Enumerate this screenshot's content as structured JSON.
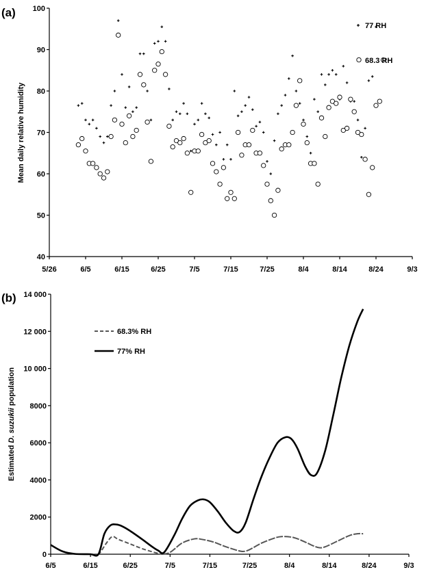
{
  "chart_data": [
    {
      "panel_label": "(a)",
      "type": "scatter",
      "ylabel": "Mean daily relative humidity",
      "xlim": [
        0,
        100
      ],
      "ylim": [
        40,
        100
      ],
      "x_ticks": [
        {
          "pos": 0,
          "label": "5/26"
        },
        {
          "pos": 10,
          "label": "6/5"
        },
        {
          "pos": 20,
          "label": "6/15"
        },
        {
          "pos": 30,
          "label": "6/25"
        },
        {
          "pos": 40,
          "label": "7/5"
        },
        {
          "pos": 50,
          "label": "7/15"
        },
        {
          "pos": 60,
          "label": "7/25"
        },
        {
          "pos": 70,
          "label": "8/4"
        },
        {
          "pos": 80,
          "label": "8/14"
        },
        {
          "pos": 90,
          "label": "8/24"
        },
        {
          "pos": 100,
          "label": "9/3"
        }
      ],
      "y_ticks": [
        40,
        50,
        60,
        70,
        80,
        90,
        100
      ],
      "series": [
        {
          "name": "77 RH",
          "marker": "plus",
          "values": [
            [
              8,
              76.5
            ],
            [
              9,
              77
            ],
            [
              10,
              73
            ],
            [
              11,
              72
            ],
            [
              12,
              73
            ],
            [
              13,
              71
            ],
            [
              14,
              69
            ],
            [
              15,
              67.5
            ],
            [
              16,
              69
            ],
            [
              17,
              76.5
            ],
            [
              18,
              80
            ],
            [
              19,
              97
            ],
            [
              20,
              84
            ],
            [
              21,
              76
            ],
            [
              22,
              81
            ],
            [
              23,
              75
            ],
            [
              24,
              76
            ],
            [
              25,
              89
            ],
            [
              26,
              89
            ],
            [
              27,
              80
            ],
            [
              28,
              73
            ],
            [
              29,
              91.5
            ],
            [
              30,
              92
            ],
            [
              31,
              95.5
            ],
            [
              32,
              92
            ],
            [
              33,
              80.5
            ],
            [
              34,
              73
            ],
            [
              35,
              75
            ],
            [
              36,
              74.5
            ],
            [
              37,
              77
            ],
            [
              38,
              74.5
            ],
            [
              39,
              65.5
            ],
            [
              40,
              72
            ],
            [
              41,
              73
            ],
            [
              42,
              77
            ],
            [
              43,
              74.5
            ],
            [
              44,
              73.5
            ],
            [
              45,
              69.5
            ],
            [
              46,
              67
            ],
            [
              47,
              70
            ],
            [
              48,
              63.5
            ],
            [
              49,
              67
            ],
            [
              50,
              63.5
            ],
            [
              51,
              80
            ],
            [
              52,
              74
            ],
            [
              53,
              75
            ],
            [
              54,
              76.5
            ],
            [
              55,
              78.5
            ],
            [
              56,
              75.5
            ],
            [
              57,
              71.5
            ],
            [
              58,
              72.5
            ],
            [
              59,
              70
            ],
            [
              60,
              63
            ],
            [
              61,
              60
            ],
            [
              62,
              68
            ],
            [
              63,
              74.5
            ],
            [
              64,
              76.5
            ],
            [
              65,
              79
            ],
            [
              66,
              83
            ],
            [
              67,
              88.5
            ],
            [
              68,
              80
            ],
            [
              69,
              77
            ],
            [
              70,
              73
            ],
            [
              71,
              69
            ],
            [
              72,
              65
            ],
            [
              73,
              78
            ],
            [
              74,
              75
            ],
            [
              75,
              84
            ],
            [
              76,
              81.5
            ],
            [
              77,
              84
            ],
            [
              78,
              85
            ],
            [
              79,
              84
            ],
            [
              80,
              78
            ],
            [
              81,
              86
            ],
            [
              82,
              82
            ],
            [
              83,
              77.5
            ],
            [
              84,
              77.5
            ],
            [
              85,
              73
            ],
            [
              86,
              64
            ],
            [
              87,
              71
            ],
            [
              88,
              82.5
            ],
            [
              89,
              83.5
            ],
            [
              90,
              95.5
            ]
          ]
        },
        {
          "name": "68.3 RH",
          "marker": "circle",
          "values": [
            [
              8,
              67
            ],
            [
              9,
              68.5
            ],
            [
              10,
              65.5
            ],
            [
              11,
              62.5
            ],
            [
              12,
              62.5
            ],
            [
              13,
              61.5
            ],
            [
              14,
              60
            ],
            [
              15,
              59
            ],
            [
              16,
              60.5
            ],
            [
              17,
              69
            ],
            [
              18,
              73
            ],
            [
              19,
              93.5
            ],
            [
              20,
              72
            ],
            [
              21,
              67.5
            ],
            [
              22,
              74
            ],
            [
              23,
              69
            ],
            [
              24,
              70.5
            ],
            [
              25,
              84
            ],
            [
              26,
              81.5
            ],
            [
              27,
              72.5
            ],
            [
              28,
              63
            ],
            [
              29,
              85
            ],
            [
              30,
              86.5
            ],
            [
              31,
              89.5
            ],
            [
              32,
              84
            ],
            [
              33,
              71.5
            ],
            [
              34,
              66.5
            ],
            [
              35,
              68
            ],
            [
              36,
              67.5
            ],
            [
              37,
              68.5
            ],
            [
              38,
              65
            ],
            [
              39,
              55.5
            ],
            [
              40,
              65.5
            ],
            [
              41,
              65.5
            ],
            [
              42,
              69.5
            ],
            [
              43,
              67.5
            ],
            [
              44,
              68
            ],
            [
              45,
              62.5
            ],
            [
              46,
              60.5
            ],
            [
              47,
              57.5
            ],
            [
              48,
              61.5
            ],
            [
              49,
              54
            ],
            [
              50,
              55.5
            ],
            [
              51,
              54
            ],
            [
              52,
              70
            ],
            [
              53,
              64.5
            ],
            [
              54,
              67
            ],
            [
              55,
              67
            ],
            [
              56,
              70.5
            ],
            [
              57,
              65
            ],
            [
              58,
              65
            ],
            [
              59,
              62
            ],
            [
              60,
              57.5
            ],
            [
              61,
              53.5
            ],
            [
              62,
              50
            ],
            [
              63,
              56
            ],
            [
              64,
              66
            ],
            [
              65,
              67
            ],
            [
              66,
              67
            ],
            [
              67,
              70
            ],
            [
              68,
              76.5
            ],
            [
              69,
              82.5
            ],
            [
              70,
              72
            ],
            [
              71,
              67.5
            ],
            [
              72,
              62.5
            ],
            [
              73,
              62.5
            ],
            [
              74,
              57.5
            ],
            [
              75,
              73.5
            ],
            [
              76,
              69
            ],
            [
              77,
              76
            ],
            [
              78,
              77.5
            ],
            [
              79,
              77
            ],
            [
              80,
              78.5
            ],
            [
              81,
              70.5
            ],
            [
              82,
              71
            ],
            [
              83,
              78
            ],
            [
              84,
              75
            ],
            [
              85,
              70
            ],
            [
              86,
              69.5
            ],
            [
              87,
              63.5
            ],
            [
              88,
              55
            ],
            [
              89,
              61.5
            ],
            [
              90,
              76.5
            ],
            [
              91,
              77.5
            ],
            [
              92,
              87.5
            ]
          ]
        }
      ]
    },
    {
      "panel_label": "(b)",
      "type": "line",
      "ylabel_parts": [
        "Estimated ",
        "D. suzukii",
        " population"
      ],
      "xlim": [
        0,
        90
      ],
      "ylim": [
        0,
        14000
      ],
      "x_ticks": [
        {
          "pos": 0,
          "label": "6/5"
        },
        {
          "pos": 10,
          "label": "6/15"
        },
        {
          "pos": 20,
          "label": "6/25"
        },
        {
          "pos": 30,
          "label": "7/5"
        },
        {
          "pos": 40,
          "label": "7/15"
        },
        {
          "pos": 50,
          "label": "7/25"
        },
        {
          "pos": 60,
          "label": "8/4"
        },
        {
          "pos": 70,
          "label": "8/14"
        },
        {
          "pos": 80,
          "label": "8/24"
        },
        {
          "pos": 90,
          "label": "9/3"
        }
      ],
      "y_ticks": [
        {
          "value": 0,
          "label": "0"
        },
        {
          "value": 2000,
          "label": "2000"
        },
        {
          "value": 4000,
          "label": "4000"
        },
        {
          "value": 6000,
          "label": "6000"
        },
        {
          "value": 8000,
          "label": "8000"
        },
        {
          "value": 10000,
          "label": "10 000"
        },
        {
          "value": 12000,
          "label": "12 000"
        },
        {
          "value": 14000,
          "label": "14 000"
        }
      ],
      "series": [
        {
          "name": "68.3% RH",
          "color": "#555555",
          "style": "dashed-then-solid",
          "points": [
            [
              0,
              500
            ],
            [
              3,
              150
            ],
            [
              6,
              20
            ],
            [
              10,
              0
            ],
            [
              12,
              0
            ],
            [
              14,
              600
            ],
            [
              15.5,
              950
            ],
            [
              17,
              800
            ],
            [
              20,
              550
            ],
            [
              23,
              300
            ],
            [
              26,
              100
            ],
            [
              28,
              0
            ],
            [
              30,
              100
            ],
            [
              33,
              600
            ],
            [
              36,
              820
            ],
            [
              38,
              800
            ],
            [
              41,
              650
            ],
            [
              44,
              400
            ],
            [
              47,
              200
            ],
            [
              48.5,
              150
            ],
            [
              50,
              250
            ],
            [
              53,
              600
            ],
            [
              56,
              850
            ],
            [
              58,
              950
            ],
            [
              61,
              900
            ],
            [
              64,
              650
            ],
            [
              66,
              450
            ],
            [
              67.5,
              350
            ],
            [
              69,
              400
            ],
            [
              72,
              700
            ],
            [
              75,
              1000
            ],
            [
              77,
              1100
            ],
            [
              78.5,
              1100
            ]
          ]
        },
        {
          "name": "77% RH",
          "color": "#000000",
          "style": "solid",
          "points": [
            [
              0,
              500
            ],
            [
              3,
              150
            ],
            [
              6,
              20
            ],
            [
              10,
              0
            ],
            [
              12,
              0
            ],
            [
              13.5,
              1100
            ],
            [
              15,
              1550
            ],
            [
              16.5,
              1600
            ],
            [
              18,
              1500
            ],
            [
              20,
              1250
            ],
            [
              23,
              800
            ],
            [
              25.5,
              400
            ],
            [
              27,
              200
            ],
            [
              28.5,
              100
            ],
            [
              31,
              1000
            ],
            [
              33,
              1900
            ],
            [
              35,
              2600
            ],
            [
              37,
              2900
            ],
            [
              38.5,
              2950
            ],
            [
              40,
              2800
            ],
            [
              42,
              2300
            ],
            [
              44,
              1700
            ],
            [
              46,
              1250
            ],
            [
              47.5,
              1200
            ],
            [
              49,
              1700
            ],
            [
              51,
              3000
            ],
            [
              53,
              4200
            ],
            [
              55,
              5200
            ],
            [
              57,
              6000
            ],
            [
              59,
              6300
            ],
            [
              60.5,
              6200
            ],
            [
              62,
              5700
            ],
            [
              64,
              4700
            ],
            [
              65.5,
              4250
            ],
            [
              67,
              4400
            ],
            [
              69,
              5600
            ],
            [
              71,
              7500
            ],
            [
              73,
              9500
            ],
            [
              75,
              11200
            ],
            [
              77,
              12500
            ],
            [
              78.5,
              13200
            ]
          ]
        }
      ]
    }
  ]
}
